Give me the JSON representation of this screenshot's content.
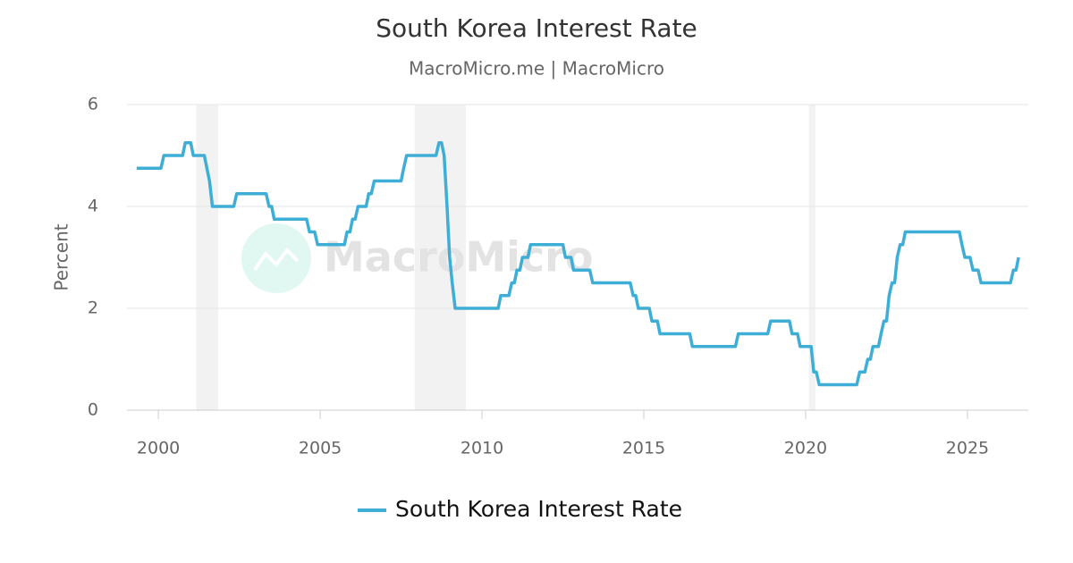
{
  "chart_data": {
    "type": "line",
    "title": "South Korea Interest Rate",
    "subtitle": "MacroMicro.me | MacroMicro",
    "watermark": "MacroMicro",
    "y_label": "Percent",
    "x": [
      1999.33,
      2000.08,
      2000.17,
      2000.75,
      2000.83,
      2001.0,
      2001.08,
      2001.42,
      2001.5,
      2001.58,
      2001.67,
      2002.33,
      2002.42,
      2003.33,
      2003.42,
      2003.5,
      2003.58,
      2004.58,
      2004.67,
      2004.83,
      2004.92,
      2005.75,
      2005.83,
      2005.92,
      2006.0,
      2006.08,
      2006.17,
      2006.42,
      2006.5,
      2006.58,
      2006.67,
      2007.5,
      2007.58,
      2007.67,
      2008.58,
      2008.67,
      2008.75,
      2008.83,
      2008.92,
      2009.0,
      2009.08,
      2009.17,
      2010.5,
      2010.58,
      2010.83,
      2010.92,
      2011.0,
      2011.08,
      2011.17,
      2011.25,
      2011.42,
      2011.5,
      2012.5,
      2012.58,
      2012.75,
      2012.83,
      2013.33,
      2013.42,
      2014.58,
      2014.67,
      2014.75,
      2014.83,
      2015.17,
      2015.25,
      2015.42,
      2015.5,
      2016.42,
      2016.5,
      2017.83,
      2017.92,
      2018.83,
      2018.92,
      2019.5,
      2019.58,
      2019.75,
      2019.83,
      2020.17,
      2020.25,
      2020.33,
      2020.42,
      2021.58,
      2021.67,
      2021.83,
      2021.92,
      2022.0,
      2022.08,
      2022.25,
      2022.33,
      2022.42,
      2022.5,
      2022.58,
      2022.67,
      2022.75,
      2022.83,
      2022.92,
      2023.0,
      2023.08,
      2024.75,
      2024.83,
      2024.92,
      2025.08,
      2025.17,
      2025.33,
      2025.42,
      2026.33,
      2026.42,
      2026.5,
      2026.58
    ],
    "series": [
      {
        "name": "South Korea Interest Rate",
        "color": "#3eaed6",
        "values": [
          4.75,
          4.75,
          5.0,
          5.0,
          5.25,
          5.25,
          5.0,
          5.0,
          4.75,
          4.5,
          4.0,
          4.0,
          4.25,
          4.25,
          4.0,
          4.0,
          3.75,
          3.75,
          3.5,
          3.5,
          3.25,
          3.25,
          3.5,
          3.5,
          3.75,
          3.75,
          4.0,
          4.0,
          4.25,
          4.25,
          4.5,
          4.5,
          4.75,
          5.0,
          5.0,
          5.25,
          5.25,
          5.0,
          4.0,
          3.0,
          2.5,
          2.0,
          2.0,
          2.25,
          2.25,
          2.5,
          2.5,
          2.75,
          2.75,
          3.0,
          3.0,
          3.25,
          3.25,
          3.0,
          3.0,
          2.75,
          2.75,
          2.5,
          2.5,
          2.25,
          2.25,
          2.0,
          2.0,
          1.75,
          1.75,
          1.5,
          1.5,
          1.25,
          1.25,
          1.5,
          1.5,
          1.75,
          1.75,
          1.5,
          1.5,
          1.25,
          1.25,
          0.75,
          0.75,
          0.5,
          0.5,
          0.75,
          0.75,
          1.0,
          1.0,
          1.25,
          1.25,
          1.5,
          1.75,
          1.75,
          2.25,
          2.5,
          2.5,
          3.0,
          3.25,
          3.25,
          3.5,
          3.5,
          3.25,
          3.0,
          3.0,
          2.75,
          2.75,
          2.5,
          2.5,
          2.75,
          2.75,
          3.0
        ]
      }
    ],
    "shaded_periods": [
      [
        2001.17,
        2001.85
      ],
      [
        2007.92,
        2009.5
      ],
      [
        2020.1,
        2020.3
      ]
    ],
    "shade_color": "#f2f2f2",
    "xlim": [
      1999.03,
      2026.88
    ],
    "xticks": [
      2000,
      2005,
      2010,
      2015,
      2020,
      2025
    ],
    "ylim": [
      0,
      6
    ],
    "yticks": [
      0,
      2,
      4,
      6
    ],
    "grid": true,
    "legend": "bottom"
  }
}
